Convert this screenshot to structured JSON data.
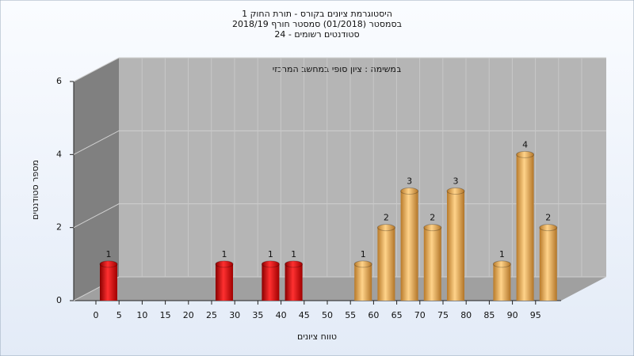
{
  "chart_data": {
    "type": "bar",
    "title": [
      "היסטוגרמת ציונים בקורס - תורת החוק 1",
      "בסמסטר (01/2018) סמסטר חורף 2018/19",
      "סטודנטים רשומים - 24"
    ],
    "annotation": "במשימה : ציון סופי במחשב המרכזי",
    "x_label": "טווח ציונים",
    "y_label": "מספר סטודנטים",
    "categories": [
      "0",
      "5",
      "10",
      "15",
      "20",
      "25",
      "30",
      "35",
      "40",
      "45",
      "50",
      "55",
      "60",
      "65",
      "70",
      "75",
      "80",
      "85",
      "90",
      "95"
    ],
    "values": [
      1,
      0,
      0,
      0,
      0,
      1,
      0,
      1,
      1,
      0,
      0,
      1,
      2,
      3,
      2,
      3,
      0,
      1,
      4,
      2
    ],
    "bar_colors": [
      "red",
      "red",
      "red",
      "red",
      "red",
      "red",
      "red",
      "red",
      "red",
      "red",
      "red",
      "orange",
      "orange",
      "orange",
      "orange",
      "orange",
      "orange",
      "orange",
      "orange",
      "orange"
    ],
    "ylim": [
      0,
      6
    ],
    "yticks": [
      0,
      2,
      4,
      6
    ],
    "grid": true
  }
}
